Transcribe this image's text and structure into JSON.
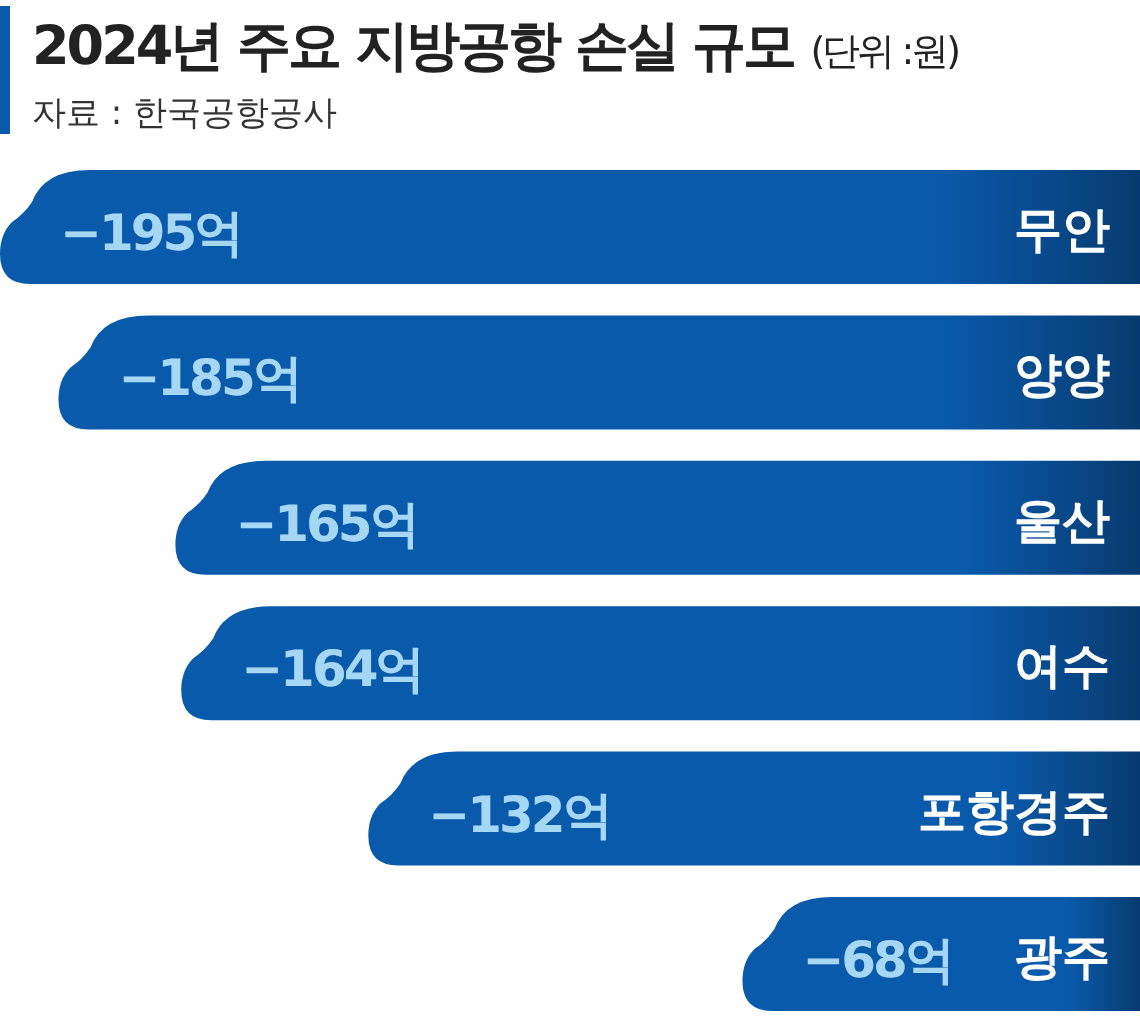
{
  "chart_data": {
    "type": "bar",
    "orientation": "horizontal",
    "title": "2024년 주요 지방공항 손실 규모",
    "subtitle": "(단위 :원)",
    "annotations": [
      "자료 : 한국공항공사"
    ],
    "categories": [
      "무안",
      "양양",
      "울산",
      "여수",
      "포항경주",
      "광주"
    ],
    "values": [
      -195,
      -185,
      -165,
      -164,
      -132,
      -68
    ],
    "value_labels": [
      "−195억",
      "−185억",
      "−165억",
      "−164억",
      "−132억",
      "−68억"
    ],
    "color": "#0a5aab"
  }
}
